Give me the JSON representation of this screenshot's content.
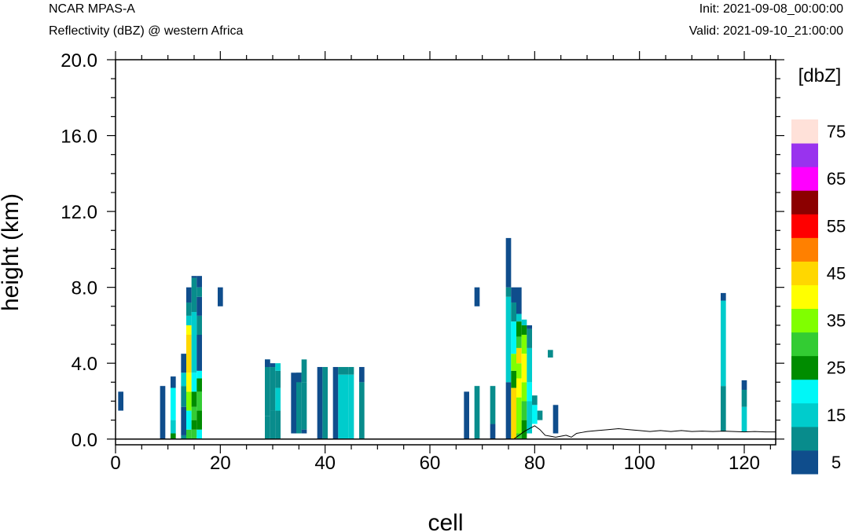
{
  "header": {
    "left_top": "NCAR MPAS-A",
    "left_bottom": "Reflectivity (dBZ) @ western Africa",
    "right_top": "Init: 2021-09-08_00:00:00",
    "right_bottom": "Valid: 2021-09-10_21:00:00"
  },
  "chart_data": {
    "type": "heatmap",
    "title": "NCAR MPAS-A",
    "subtitle": "Reflectivity (dBZ) @ western Africa",
    "xlabel": "cell",
    "ylabel": "height (km)",
    "xlim": [
      0,
      126
    ],
    "ylim": [
      -0.3,
      20.0
    ],
    "x_ticks": [
      0,
      20,
      40,
      60,
      80,
      100,
      120
    ],
    "x_tick_labels": [
      "0",
      "20",
      "40",
      "60",
      "80",
      "100",
      "120"
    ],
    "y_ticks": [
      0,
      4,
      8,
      12,
      16,
      20
    ],
    "y_tick_labels": [
      "0.0",
      "4.0",
      "8.0",
      "12.0",
      "16.0",
      "20.0"
    ],
    "colorbar": {
      "units_label": "[dbZ]",
      "levels": [
        5,
        10,
        15,
        20,
        25,
        30,
        35,
        40,
        45,
        50,
        55,
        60,
        65,
        70,
        75
      ],
      "tick_labels": [
        "5",
        "15",
        "25",
        "35",
        "45",
        "55",
        "65",
        "75"
      ],
      "colors": [
        "#0f4d8c",
        "#088c8c",
        "#00cccc",
        "#00f7f7",
        "#008c00",
        "#33cc33",
        "#80ff00",
        "#ffff00",
        "#ffd700",
        "#ff8000",
        "#ff0000",
        "#8c0000",
        "#ff00ff",
        "#9933ee",
        "#ffe1d9"
      ]
    },
    "cells": [
      [
        1,
        1.5,
        2.5,
        5
      ],
      [
        9,
        0.0,
        2.8,
        5
      ],
      [
        11,
        0.0,
        0.3,
        25
      ],
      [
        11,
        0.3,
        1.0,
        15
      ],
      [
        11,
        1.0,
        2.7,
        20
      ],
      [
        11,
        2.7,
        3.3,
        5
      ],
      [
        13,
        0.0,
        0.2,
        10
      ],
      [
        13,
        0.2,
        1.7,
        5
      ],
      [
        13,
        1.7,
        2.8,
        10
      ],
      [
        13,
        2.8,
        3.5,
        15
      ],
      [
        13,
        3.5,
        4.5,
        5
      ],
      [
        14,
        0.0,
        0.5,
        30
      ],
      [
        14,
        0.5,
        1.5,
        20
      ],
      [
        14,
        1.5,
        2.5,
        35
      ],
      [
        14,
        2.5,
        3.5,
        40
      ],
      [
        14,
        3.5,
        5.5,
        45
      ],
      [
        14,
        5.5,
        6.0,
        40
      ],
      [
        14,
        6.0,
        6.5,
        15
      ],
      [
        14,
        6.5,
        7.2,
        10
      ],
      [
        14,
        7.2,
        8.0,
        5
      ],
      [
        15,
        0.0,
        0.5,
        30
      ],
      [
        15,
        0.5,
        1.0,
        25
      ],
      [
        15,
        1.0,
        1.7,
        30
      ],
      [
        15,
        1.7,
        2.5,
        25
      ],
      [
        15,
        2.5,
        3.5,
        20
      ],
      [
        15,
        3.5,
        6.7,
        15
      ],
      [
        15,
        6.7,
        8.5,
        10
      ],
      [
        15,
        8.5,
        8.6,
        5
      ],
      [
        16,
        0.0,
        0.5,
        20
      ],
      [
        16,
        0.5,
        1.5,
        25
      ],
      [
        16,
        1.5,
        2.5,
        30
      ],
      [
        16,
        2.5,
        3.2,
        25
      ],
      [
        16,
        3.2,
        3.6,
        20
      ],
      [
        16,
        3.6,
        5.5,
        5
      ],
      [
        16,
        5.5,
        6.5,
        10
      ],
      [
        16,
        6.5,
        7.5,
        5
      ],
      [
        16,
        7.5,
        8.0,
        10
      ],
      [
        16,
        8.0,
        8.6,
        5
      ],
      [
        20,
        7.0,
        8.0,
        5
      ],
      [
        29,
        0.0,
        1.2,
        10
      ],
      [
        29,
        1.2,
        4.2,
        10
      ],
      [
        29,
        3.8,
        4.2,
        5
      ],
      [
        30,
        0.0,
        1.5,
        10
      ],
      [
        30,
        1.5,
        3.8,
        10
      ],
      [
        30,
        3.8,
        4.0,
        5
      ],
      [
        31,
        0.0,
        1.5,
        10
      ],
      [
        31,
        1.5,
        2.7,
        15
      ],
      [
        31,
        2.7,
        3.6,
        10
      ],
      [
        31,
        3.6,
        4.0,
        15
      ],
      [
        31,
        1.5,
        1.7,
        15
      ],
      [
        34,
        0.3,
        3.5,
        5
      ],
      [
        35,
        0.3,
        3.5,
        10
      ],
      [
        35,
        3.0,
        3.5,
        5
      ],
      [
        36,
        0.5,
        3.0,
        10
      ],
      [
        36,
        3.0,
        4.2,
        10
      ],
      [
        36,
        0.3,
        0.5,
        5
      ],
      [
        39,
        0.0,
        3.8,
        5
      ],
      [
        40,
        0.0,
        3.8,
        10
      ],
      [
        42,
        0.0,
        3.8,
        5
      ],
      [
        43,
        0.0,
        3.4,
        15
      ],
      [
        43,
        3.4,
        3.8,
        10
      ],
      [
        44,
        0.0,
        3.4,
        15
      ],
      [
        44,
        3.4,
        3.8,
        10
      ],
      [
        45,
        0.0,
        3.4,
        15
      ],
      [
        45,
        3.4,
        3.8,
        10
      ],
      [
        47,
        0.0,
        3.0,
        10
      ],
      [
        47,
        3.0,
        3.8,
        5
      ],
      [
        67,
        0.0,
        2.5,
        5
      ],
      [
        69,
        0.0,
        2.8,
        10
      ],
      [
        69,
        7.0,
        8.0,
        5
      ],
      [
        72,
        0.0,
        0.8,
        5
      ],
      [
        72,
        0.8,
        2.8,
        10
      ],
      [
        75,
        0.0,
        3.0,
        5
      ],
      [
        75,
        3.0,
        7.5,
        15
      ],
      [
        75,
        7.5,
        8.0,
        10
      ],
      [
        75,
        8.0,
        10.6,
        5
      ],
      [
        76,
        0.0,
        2.7,
        45
      ],
      [
        76,
        2.7,
        3.6,
        25
      ],
      [
        76,
        3.6,
        4.5,
        35
      ],
      [
        76,
        4.5,
        6.2,
        20
      ],
      [
        76,
        6.2,
        7.2,
        10
      ],
      [
        76,
        7.2,
        8.0,
        5
      ],
      [
        77,
        0.0,
        0.3,
        30
      ],
      [
        77,
        0.3,
        2.2,
        35
      ],
      [
        77,
        2.2,
        3.2,
        40
      ],
      [
        77,
        3.2,
        4.0,
        35
      ],
      [
        77,
        4.0,
        4.8,
        45
      ],
      [
        77,
        4.8,
        5.4,
        30
      ],
      [
        77,
        5.4,
        6.2,
        25
      ],
      [
        77,
        6.2,
        6.6,
        15
      ],
      [
        77,
        6.6,
        8.0,
        5
      ],
      [
        78,
        0.0,
        1.0,
        25
      ],
      [
        78,
        1.0,
        2.0,
        30
      ],
      [
        78,
        2.0,
        3.0,
        35
      ],
      [
        78,
        3.0,
        4.5,
        40
      ],
      [
        78,
        4.5,
        5.5,
        35
      ],
      [
        78,
        5.5,
        6.0,
        25
      ],
      [
        78,
        6.0,
        6.3,
        15
      ],
      [
        79,
        0.3,
        2.0,
        15
      ],
      [
        79,
        2.0,
        3.0,
        20
      ],
      [
        79,
        3.0,
        4.8,
        15
      ],
      [
        79,
        4.8,
        5.8,
        10
      ],
      [
        79,
        5.8,
        6.0,
        5
      ],
      [
        80,
        0.8,
        1.8,
        20
      ],
      [
        80,
        1.8,
        2.3,
        10
      ],
      [
        81,
        1.0,
        1.5,
        10
      ],
      [
        83,
        4.3,
        4.7,
        10
      ],
      [
        84,
        0.3,
        1.8,
        5
      ],
      [
        116,
        0.4,
        2.8,
        10
      ],
      [
        116,
        2.8,
        7.3,
        15
      ],
      [
        116,
        7.3,
        7.7,
        5
      ],
      [
        120,
        0.4,
        1.7,
        15
      ],
      [
        120,
        1.7,
        2.6,
        10
      ],
      [
        120,
        2.6,
        3.1,
        5
      ]
    ],
    "terrain": [
      [
        76,
        0.0
      ],
      [
        77,
        0.2
      ],
      [
        78,
        0.4
      ],
      [
        79,
        0.55
      ],
      [
        80,
        0.7
      ],
      [
        81,
        0.5
      ],
      [
        82,
        0.2
      ],
      [
        83,
        0.15
      ],
      [
        84,
        0.1
      ],
      [
        85,
        0.15
      ],
      [
        86,
        0.2
      ],
      [
        87,
        0.1
      ],
      [
        88,
        0.3
      ],
      [
        89,
        0.35
      ],
      [
        90,
        0.4
      ],
      [
        92,
        0.45
      ],
      [
        94,
        0.5
      ],
      [
        96,
        0.55
      ],
      [
        98,
        0.5
      ],
      [
        100,
        0.45
      ],
      [
        102,
        0.4
      ],
      [
        104,
        0.45
      ],
      [
        106,
        0.4
      ],
      [
        108,
        0.45
      ],
      [
        110,
        0.4
      ],
      [
        112,
        0.42
      ],
      [
        114,
        0.4
      ],
      [
        116,
        0.42
      ],
      [
        118,
        0.4
      ],
      [
        120,
        0.38
      ],
      [
        122,
        0.4
      ],
      [
        124,
        0.38
      ],
      [
        126,
        0.38
      ]
    ],
    "grid": false,
    "legend": "right colorbar"
  }
}
